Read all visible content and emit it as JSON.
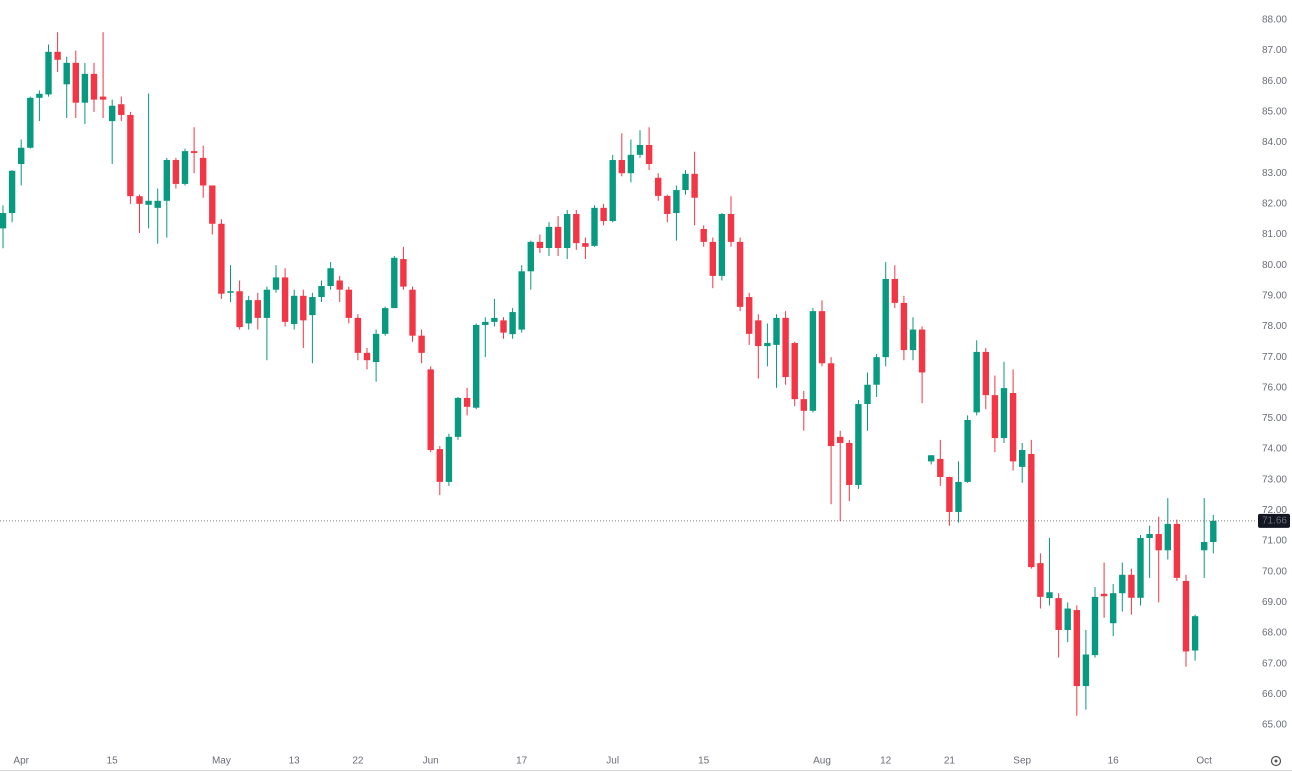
{
  "chart_data": {
    "type": "candlestick",
    "categories": [
      null,
      null,
      "Apr",
      null,
      null,
      null,
      null,
      null,
      null,
      null,
      null,
      null,
      "15",
      null,
      null,
      null,
      null,
      null,
      null,
      null,
      null,
      null,
      null,
      null,
      "May",
      null,
      null,
      null,
      null,
      null,
      null,
      null,
      "13",
      null,
      null,
      null,
      null,
      null,
      null,
      "22",
      null,
      null,
      null,
      null,
      null,
      null,
      null,
      "Jun",
      null,
      null,
      null,
      null,
      null,
      null,
      null,
      null,
      null,
      "17",
      null,
      null,
      null,
      null,
      null,
      null,
      null,
      null,
      null,
      "Jul",
      null,
      null,
      null,
      null,
      null,
      null,
      null,
      null,
      null,
      "15",
      null,
      null,
      null,
      null,
      null,
      null,
      null,
      null,
      null,
      null,
      null,
      null,
      "Aug",
      null,
      null,
      null,
      null,
      null,
      null,
      "12",
      null,
      null,
      null,
      null,
      null,
      null,
      "21",
      null,
      null,
      null,
      null,
      null,
      null,
      null,
      "Sep",
      null,
      null,
      null,
      null,
      null,
      null,
      null,
      null,
      null,
      "16",
      null,
      null,
      null,
      null,
      null,
      null,
      null,
      null,
      null,
      "Oct",
      null
    ],
    "open": [
      81.2,
      81.7,
      83.3,
      83.83,
      85.46,
      85.57,
      86.96,
      85.9,
      86.6,
      85.3,
      86.24,
      85.5,
      84.7,
      85.25,
      84.9,
      82.25,
      81.97,
      81.87,
      82.1,
      83.43,
      82.65,
      83.72,
      83.5,
      82.6,
      81.35,
      79.1,
      79.15,
      78.1,
      78.86,
      78.28,
      79.2,
      79.6,
      78.08,
      79.0,
      78.37,
      78.96,
      79.32,
      79.5,
      79.2,
      78.28,
      77.14,
      76.84,
      77.76,
      78.6,
      80.2,
      79.2,
      77.7,
      76.6,
      74.0,
      72.93,
      74.4,
      75.67,
      75.35,
      78.05,
      78.15,
      78.2,
      77.75,
      77.9,
      79.8,
      80.76,
      80.56,
      81.25,
      80.56,
      81.67,
      80.72,
      80.63,
      81.87,
      81.44,
      83.43,
      83.0,
      83.6,
      83.92,
      82.85,
      82.26,
      81.7,
      82.45,
      82.98,
      81.18,
      80.76,
      79.65,
      81.67,
      80.76,
      78.96,
      78.2,
      77.36,
      77.4,
      78.28,
      77.46,
      75.63,
      75.25,
      78.5,
      76.8,
      74.4,
      74.2,
      72.83,
      75.47,
      76.1,
      77.0,
      79.55,
      78.77,
      77.23,
      77.9,
      73.6,
      73.68,
      73.09,
      71.95,
      72.93,
      75.2,
      77.17,
      75.76,
      74.36,
      75.83,
      73.42,
      73.84,
      70.28,
      69.14,
      69.14,
      68.1,
      68.75,
      66.27,
      67.28,
      69.28,
      68.32,
      69.3,
      69.9,
      69.15,
      71.1,
      71.23,
      70.7,
      71.56,
      69.7,
      67.43,
      70.7,
      70.97
    ],
    "high": [
      81.95,
      83.1,
      84.1,
      85.5,
      85.7,
      87.2,
      87.6,
      86.8,
      87.0,
      86.6,
      86.6,
      87.6,
      85.4,
      85.5,
      85.0,
      82.3,
      85.6,
      82.5,
      83.5,
      83.5,
      83.8,
      84.5,
      83.9,
      82.6,
      81.5,
      80.0,
      79.5,
      79.0,
      79.1,
      79.3,
      80.0,
      79.9,
      79.2,
      79.2,
      79.1,
      79.5,
      80.1,
      79.65,
      79.3,
      78.4,
      77.3,
      77.9,
      78.65,
      80.3,
      80.6,
      79.3,
      77.9,
      76.7,
      74.1,
      74.5,
      75.7,
      76.0,
      78.1,
      78.3,
      78.9,
      78.3,
      78.6,
      80.0,
      80.8,
      81.0,
      81.4,
      81.6,
      81.8,
      81.8,
      80.9,
      81.95,
      82.0,
      83.6,
      84.3,
      84.1,
      84.4,
      84.5,
      83.0,
      82.3,
      82.6,
      83.1,
      83.7,
      81.3,
      80.9,
      81.7,
      82.25,
      80.9,
      79.1,
      78.4,
      78.1,
      78.4,
      78.5,
      77.5,
      75.9,
      78.6,
      78.85,
      77.0,
      74.6,
      74.3,
      75.6,
      76.5,
      77.1,
      80.1,
      80.0,
      79.0,
      78.3,
      78.0,
      73.8,
      74.3,
      73.1,
      73.6,
      75.1,
      77.55,
      77.3,
      76.4,
      76.85,
      76.6,
      74.2,
      74.3,
      70.6,
      71.1,
      69.3,
      69.0,
      68.9,
      68.1,
      69.5,
      70.3,
      69.6,
      70.3,
      70.1,
      71.2,
      71.5,
      71.8,
      72.4,
      71.7,
      69.9,
      68.6,
      72.4,
      71.85
    ],
    "low": [
      80.55,
      81.4,
      82.6,
      83.8,
      84.7,
      85.5,
      86.3,
      84.8,
      84.8,
      84.6,
      85.0,
      84.8,
      83.3,
      84.7,
      82.0,
      81.05,
      81.2,
      80.7,
      80.9,
      82.5,
      82.6,
      83.0,
      82.2,
      81.0,
      78.9,
      78.8,
      77.9,
      77.9,
      77.9,
      76.9,
      79.1,
      78.0,
      77.9,
      77.3,
      76.8,
      78.8,
      79.2,
      78.8,
      78.1,
      76.9,
      76.6,
      76.2,
      77.7,
      78.6,
      79.2,
      77.5,
      76.8,
      73.9,
      72.5,
      72.8,
      74.3,
      75.1,
      75.3,
      77.0,
      78.0,
      77.6,
      77.6,
      77.8,
      79.2,
      80.4,
      80.3,
      80.3,
      80.2,
      80.5,
      80.2,
      80.6,
      81.3,
      81.4,
      82.9,
      82.7,
      83.5,
      83.1,
      82.1,
      81.4,
      80.8,
      82.3,
      81.3,
      80.6,
      79.25,
      79.5,
      80.6,
      78.5,
      77.4,
      76.3,
      76.7,
      76.0,
      76.1,
      75.4,
      74.6,
      75.2,
      76.7,
      72.2,
      71.66,
      72.3,
      72.7,
      74.6,
      75.7,
      76.7,
      78.6,
      76.9,
      76.9,
      75.5,
      73.5,
      72.8,
      71.5,
      71.6,
      72.9,
      75.1,
      75.3,
      73.9,
      74.2,
      73.3,
      72.9,
      70.1,
      68.8,
      68.9,
      67.2,
      67.7,
      65.3,
      65.5,
      67.2,
      68.5,
      67.9,
      68.7,
      68.6,
      68.9,
      69.8,
      69.0,
      70.4,
      69.7,
      66.9,
      67.1,
      69.8,
      70.6
    ],
    "close": [
      81.7,
      83.08,
      83.83,
      85.46,
      85.59,
      86.96,
      86.7,
      86.6,
      85.3,
      86.24,
      85.4,
      85.4,
      85.2,
      84.9,
      82.25,
      82.0,
      82.1,
      82.1,
      83.43,
      82.65,
      83.72,
      83.66,
      82.6,
      81.35,
      79.07,
      79.15,
      77.98,
      78.86,
      78.28,
      79.2,
      79.6,
      78.15,
      79.0,
      78.2,
      78.96,
      79.32,
      79.9,
      79.2,
      78.28,
      77.14,
      76.9,
      77.76,
      78.6,
      80.24,
      79.3,
      77.7,
      77.14,
      73.97,
      72.93,
      74.4,
      75.67,
      75.38,
      78.05,
      78.15,
      78.28,
      77.8,
      78.47,
      79.8,
      80.76,
      80.56,
      81.25,
      80.56,
      81.67,
      80.72,
      80.6,
      81.87,
      81.44,
      83.43,
      83.0,
      83.6,
      83.92,
      83.3,
      82.26,
      81.67,
      82.45,
      82.98,
      82.2,
      80.76,
      79.65,
      81.67,
      80.76,
      78.64,
      77.76,
      77.36,
      77.46,
      78.28,
      76.35,
      75.63,
      75.25,
      78.5,
      76.8,
      74.1,
      74.2,
      72.83,
      75.47,
      76.1,
      77.0,
      79.55,
      78.77,
      77.23,
      77.9,
      76.5,
      73.8,
      73.09,
      71.95,
      72.93,
      74.95,
      77.17,
      75.76,
      74.36,
      75.99,
      73.6,
      73.97,
      70.15,
      69.18,
      69.33,
      68.1,
      68.8,
      66.27,
      67.3,
      69.18,
      69.2,
      69.3,
      69.9,
      69.15,
      71.1,
      71.23,
      70.7,
      71.56,
      69.8,
      67.4,
      68.55,
      70.97,
      71.66
    ],
    "up_color": "#089981",
    "down_color": "#f23645",
    "ylim": [
      64.25,
      88.65
    ],
    "yticks": [
      {
        "value": 65,
        "label": "65.00"
      },
      {
        "value": 66,
        "label": "66.00"
      },
      {
        "value": 67,
        "label": "67.00"
      },
      {
        "value": 68,
        "label": "68.00"
      },
      {
        "value": 69,
        "label": "69.00"
      },
      {
        "value": 70,
        "label": "70.00"
      },
      {
        "value": 71,
        "label": "71.00"
      },
      {
        "value": 72,
        "label": "72.00"
      },
      {
        "value": 73,
        "label": "73.00"
      },
      {
        "value": 74,
        "label": "74.00"
      },
      {
        "value": 75,
        "label": "75.00"
      },
      {
        "value": 76,
        "label": "76.00"
      },
      {
        "value": 77,
        "label": "77.00"
      },
      {
        "value": 78,
        "label": "78.00"
      },
      {
        "value": 79,
        "label": "79.00"
      },
      {
        "value": 80,
        "label": "80.00"
      },
      {
        "value": 81,
        "label": "81.00"
      },
      {
        "value": 82,
        "label": "82.00"
      },
      {
        "value": 83,
        "label": "83.00"
      },
      {
        "value": 84,
        "label": "84.00"
      },
      {
        "value": 85,
        "label": "85.00"
      },
      {
        "value": 86,
        "label": "86.00"
      },
      {
        "value": 87,
        "label": "87.00"
      },
      {
        "value": 88,
        "label": "88.00"
      }
    ],
    "last_price": 71.66,
    "grid": false
  }
}
